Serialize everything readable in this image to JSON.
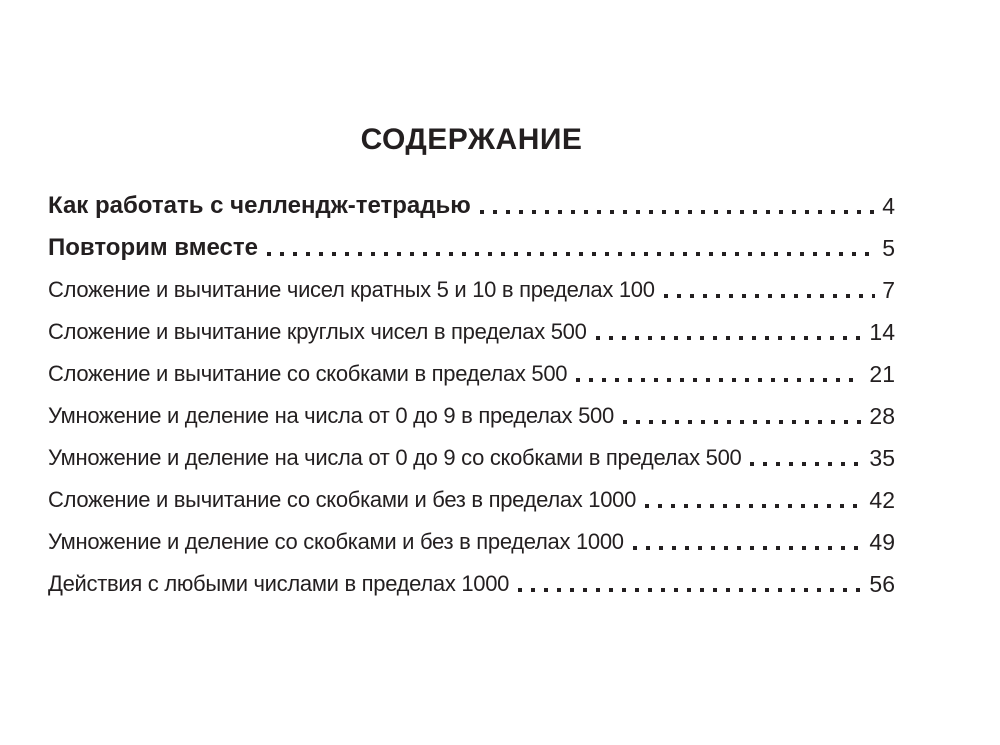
{
  "page": {
    "title": "СОДЕРЖАНИЕ",
    "text_color": "#231f20",
    "entries": [
      {
        "label": "Как работать с челлендж-тетрадью",
        "page": "4",
        "bold": true
      },
      {
        "label": "Повторим вместе",
        "page": "5",
        "bold": true
      },
      {
        "label": "Сложение и вычитание чисел кратных 5 и 10 в пределах 100",
        "page": "7",
        "bold": false
      },
      {
        "label": "Сложение и вычитание круглых чисел в пределах 500",
        "page": "14",
        "bold": false
      },
      {
        "label": "Сложение и вычитание со скобками в пределах 500",
        "page": "21",
        "bold": false
      },
      {
        "label": "Умножение и деление на числа от 0 до 9 в пределах 500",
        "page": "28",
        "bold": false
      },
      {
        "label": "Умножение и деление на числа от 0 до 9 со скобками в пределах 500",
        "page": "35",
        "bold": false
      },
      {
        "label": "Сложение и вычитание со скобками и без в пределах 1000",
        "page": "42",
        "bold": false
      },
      {
        "label": "Умножение и деление со скобками и без в пределах 1000",
        "page": "49",
        "bold": false
      },
      {
        "label": "Действия с любыми числами в пределах 1000",
        "page": "56",
        "bold": false
      }
    ]
  }
}
